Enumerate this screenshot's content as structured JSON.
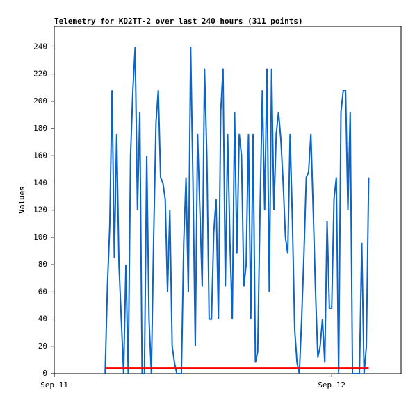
{
  "chart_data": {
    "type": "line",
    "title": "Telemetry for KD2TT-2 over last 240 hours (311 points)",
    "y_label": "Values",
    "x": [
      4.4,
      4.6,
      4.8,
      5.0,
      5.2,
      5.4,
      5.6,
      5.8,
      6.0,
      6.2,
      6.4,
      6.6,
      6.8,
      7.0,
      7.2,
      7.4,
      7.6,
      7.8,
      8.0,
      8.2,
      8.4,
      8.6,
      8.8,
      9.0,
      9.2,
      9.4,
      9.6,
      9.8,
      10.0,
      10.2,
      10.4,
      10.6,
      10.8,
      11.0,
      11.2,
      11.4,
      11.6,
      11.8,
      12.0,
      12.2,
      12.4,
      12.6,
      12.8,
      13.0,
      13.2,
      13.4,
      13.6,
      13.8,
      14.0,
      14.2,
      14.4,
      14.6,
      14.8,
      15.0,
      15.2,
      15.4,
      15.6,
      15.8,
      16.0,
      16.2,
      16.4,
      16.6,
      16.8,
      17.0,
      17.2,
      17.4,
      17.6,
      17.8,
      18.0,
      18.2,
      18.4,
      18.6,
      18.8,
      19.0,
      19.2,
      19.4,
      19.6,
      19.8,
      20.0,
      20.2,
      20.4,
      20.6,
      20.8,
      21.0,
      21.2,
      21.4,
      21.6,
      21.8,
      22.0,
      22.2,
      22.4,
      22.6,
      22.8,
      23.0,
      23.2,
      23.4,
      23.6,
      23.8,
      24.0,
      24.2,
      24.4,
      24.6,
      24.8,
      25.0,
      25.2,
      25.4,
      25.6,
      25.8,
      26.0,
      26.2,
      26.4,
      26.6,
      26.8,
      27.0,
      27.2
    ],
    "series": [
      {
        "color": "#0b64c8",
        "values": [
          0,
          64,
          108,
          208,
          85,
          176,
          80,
          40,
          0,
          80,
          0,
          160,
          208,
          240,
          120,
          192,
          0,
          0,
          160,
          40,
          0,
          100,
          184,
          208,
          144,
          140,
          128,
          60,
          120,
          20,
          8,
          0,
          0,
          0,
          96,
          144,
          60,
          240,
          140,
          20,
          176,
          120,
          64,
          224,
          160,
          40,
          40,
          104,
          128,
          40,
          192,
          224,
          64,
          176,
          96,
          40,
          192,
          88,
          176,
          160,
          64,
          80,
          176,
          40,
          176,
          8,
          16,
          120,
          208,
          120,
          224,
          60,
          224,
          120,
          176,
          192,
          172,
          140,
          100,
          88,
          176,
          112,
          32,
          8,
          0,
          40,
          88,
          144,
          148,
          176,
          120,
          60,
          12,
          20,
          40,
          8,
          112,
          48,
          48,
          128,
          144,
          0,
          192,
          208,
          208,
          120,
          192,
          0,
          0,
          0,
          0,
          96,
          0,
          20,
          144
        ]
      },
      {
        "color": "#ff0000",
        "x": [
          4.4,
          27.2
        ],
        "values": [
          4,
          4
        ]
      }
    ],
    "xlim": [
      0,
      30
    ],
    "xticks": [
      {
        "value": 0,
        "label": "Sep 11"
      },
      {
        "value": 24,
        "label": "Sep 12"
      }
    ],
    "ylim": [
      0,
      255
    ],
    "yticks": [
      0,
      20,
      40,
      60,
      80,
      100,
      120,
      140,
      160,
      180,
      200,
      220,
      240
    ]
  }
}
